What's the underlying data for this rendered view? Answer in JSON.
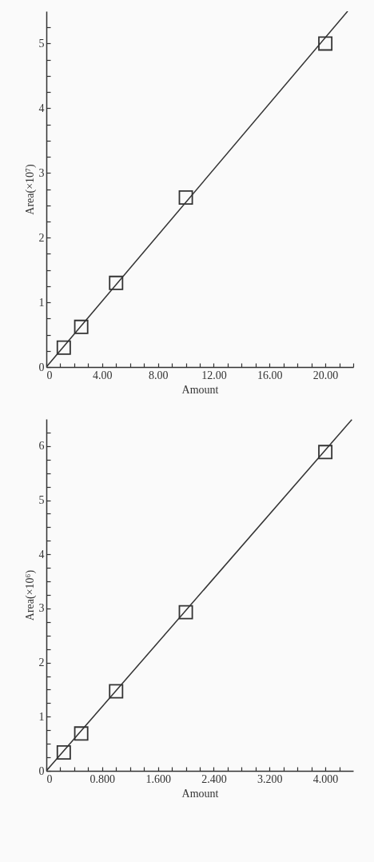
{
  "chart_data": [
    {
      "type": "scatter",
      "xlabel": "Amount",
      "ylabel": "Area(×10⁷)",
      "marker": "square",
      "line_style": "solid",
      "xlim": [
        0,
        22
      ],
      "ylim": [
        0,
        5.5
      ],
      "xticks": [
        0,
        {
          "value": 1,
          "label": null
        },
        {
          "value": 2,
          "label": null
        },
        {
          "value": 3,
          "label": null
        },
        {
          "value": 4,
          "label": "4.00"
        },
        {
          "value": 5,
          "label": null
        },
        {
          "value": 6,
          "label": null
        },
        {
          "value": 7,
          "label": null
        },
        {
          "value": 8,
          "label": "8.00"
        },
        {
          "value": 9,
          "label": null
        },
        {
          "value": 10,
          "label": null
        },
        {
          "value": 11,
          "label": null
        },
        {
          "value": 12,
          "label": "12.00"
        },
        {
          "value": 13,
          "label": null
        },
        {
          "value": 14,
          "label": null
        },
        {
          "value": 15,
          "label": null
        },
        {
          "value": 16,
          "label": "16.00"
        },
        {
          "value": 17,
          "label": null
        },
        {
          "value": 18,
          "label": null
        },
        {
          "value": 19,
          "label": null
        },
        {
          "value": 20,
          "label": "20.00"
        },
        {
          "value": 21,
          "label": null
        },
        {
          "value": 22,
          "label": null
        }
      ],
      "yticks": [
        0,
        {
          "value": 0.25,
          "label": null
        },
        {
          "value": 0.5,
          "label": null
        },
        {
          "value": 0.75,
          "label": null
        },
        1,
        {
          "value": 1.25,
          "label": null
        },
        {
          "value": 1.5,
          "label": null
        },
        {
          "value": 1.75,
          "label": null
        },
        2,
        {
          "value": 2.25,
          "label": null
        },
        {
          "value": 2.5,
          "label": null
        },
        {
          "value": 2.75,
          "label": null
        },
        3,
        {
          "value": 3.25,
          "label": null
        },
        {
          "value": 3.5,
          "label": null
        },
        {
          "value": 3.75,
          "label": null
        },
        4,
        {
          "value": 4.25,
          "label": null
        },
        {
          "value": 4.5,
          "label": null
        },
        {
          "value": 4.75,
          "label": null
        },
        5,
        {
          "value": 5.25,
          "label": null
        }
      ],
      "series": [
        {
          "color": "#333333",
          "x": [
            1.25,
            2.5,
            5,
            10,
            20
          ],
          "values": [
            0.3,
            0.62,
            1.3,
            2.62,
            5.0
          ]
        },
        {
          "type": "line",
          "marker": "none",
          "color": "#333333",
          "x": [
            0,
            21.6
          ],
          "values": [
            0,
            5.5
          ]
        }
      ]
    },
    {
      "type": "scatter",
      "xlabel": "Amount",
      "ylabel": "Area(×10⁶)",
      "marker": "square",
      "line_style": "solid",
      "xlim": [
        0,
        4.4
      ],
      "ylim": [
        0,
        6.5
      ],
      "xticks": [
        0,
        {
          "value": 0.2,
          "label": null
        },
        {
          "value": 0.4,
          "label": null
        },
        {
          "value": 0.6,
          "label": null
        },
        {
          "value": 0.8,
          "label": "0.800"
        },
        {
          "value": 1.0,
          "label": null
        },
        {
          "value": 1.2,
          "label": null
        },
        {
          "value": 1.4,
          "label": null
        },
        {
          "value": 1.6,
          "label": "1.600"
        },
        {
          "value": 1.8,
          "label": null
        },
        {
          "value": 2.0,
          "label": null
        },
        {
          "value": 2.2,
          "label": null
        },
        {
          "value": 2.4,
          "label": "2.400"
        },
        {
          "value": 2.6,
          "label": null
        },
        {
          "value": 2.8,
          "label": null
        },
        {
          "value": 3.0,
          "label": null
        },
        {
          "value": 3.2,
          "label": "3.200"
        },
        {
          "value": 3.4,
          "label": null
        },
        {
          "value": 3.6,
          "label": null
        },
        {
          "value": 3.8,
          "label": null
        },
        {
          "value": 4.0,
          "label": "4.000"
        },
        {
          "value": 4.2,
          "label": null
        }
      ],
      "yticks": [
        0,
        {
          "value": 0.25,
          "label": null
        },
        {
          "value": 0.5,
          "label": null
        },
        {
          "value": 0.75,
          "label": null
        },
        1,
        {
          "value": 1.25,
          "label": null
        },
        {
          "value": 1.5,
          "label": null
        },
        {
          "value": 1.75,
          "label": null
        },
        2,
        {
          "value": 2.25,
          "label": null
        },
        {
          "value": 2.5,
          "label": null
        },
        {
          "value": 2.75,
          "label": null
        },
        3,
        {
          "value": 3.25,
          "label": null
        },
        {
          "value": 3.5,
          "label": null
        },
        {
          "value": 3.75,
          "label": null
        },
        4,
        {
          "value": 4.25,
          "label": null
        },
        {
          "value": 4.5,
          "label": null
        },
        {
          "value": 4.75,
          "label": null
        },
        5,
        {
          "value": 5.25,
          "label": null
        },
        {
          "value": 5.5,
          "label": null
        },
        {
          "value": 5.75,
          "label": null
        },
        6,
        {
          "value": 6.25,
          "label": null
        }
      ],
      "series": [
        {
          "color": "#333333",
          "x": [
            0.25,
            0.5,
            1,
            2,
            4
          ],
          "values": [
            0.34,
            0.69,
            1.47,
            2.93,
            5.89
          ]
        },
        {
          "type": "line",
          "marker": "none",
          "color": "#333333",
          "x": [
            0,
            4.38
          ],
          "values": [
            0,
            6.49
          ]
        }
      ]
    }
  ]
}
